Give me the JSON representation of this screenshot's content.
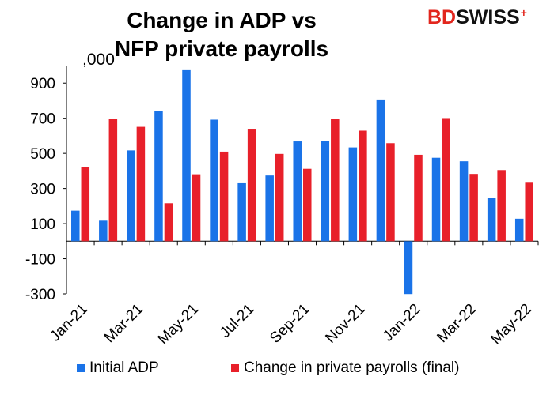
{
  "header": {
    "title_line1": "Change in ADP vs",
    "title_line2": "NFP private payrolls",
    "logo_bd": "BD",
    "logo_swiss": "SWISS",
    "logo_mark": "+"
  },
  "chart_data": {
    "type": "bar",
    "title": "Change in ADP vs NFP private payrolls",
    "unit_label": ",000",
    "categories": [
      "Jan-21",
      "Feb-21",
      "Mar-21",
      "Apr-21",
      "May-21",
      "Jun-21",
      "Jul-21",
      "Aug-21",
      "Sep-21",
      "Oct-21",
      "Nov-21",
      "Dec-21",
      "Jan-22",
      "Feb-22",
      "Mar-22",
      "Apr-22",
      "May-22"
    ],
    "x_tick_labels": [
      "Jan-21",
      "Mar-21",
      "May-21",
      "Jul-21",
      "Sep-21",
      "Nov-21",
      "Jan-22",
      "Mar-22",
      "May-22"
    ],
    "series": [
      {
        "name": "Initial ADP",
        "color": "#1a73e8",
        "values": [
          174,
          117,
          517,
          742,
          978,
          692,
          330,
          374,
          568,
          571,
          534,
          807,
          -301,
          475,
          455,
          247,
          128
        ]
      },
      {
        "name": "Change in private payrolls (final)",
        "color": "#e8202a",
        "values": [
          424,
          695,
          651,
          216,
          381,
          510,
          640,
          497,
          412,
          695,
          629,
          558,
          492,
          701,
          383,
          405,
          333
        ]
      }
    ],
    "ylim": [
      -300,
      1000
    ],
    "yticks": [
      -300,
      -100,
      100,
      300,
      500,
      700,
      900
    ],
    "grid": false,
    "legend_position": "bottom"
  }
}
